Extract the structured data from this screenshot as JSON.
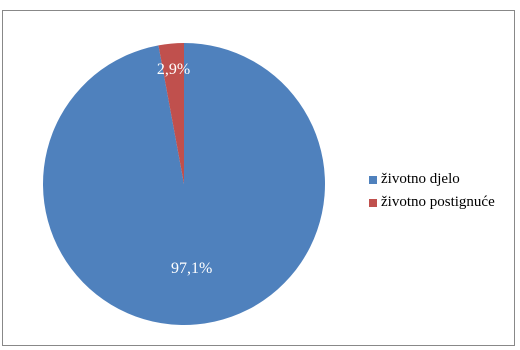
{
  "chart_data": {
    "type": "pie",
    "title": "",
    "categories": [
      "životno djelo",
      "životno postignuće"
    ],
    "values": [
      97.1,
      2.9
    ],
    "labels": [
      "97,1%",
      "2,9%"
    ],
    "colors": [
      "#4f81bd",
      "#c0504d"
    ],
    "start_angle_deg": 0,
    "direction": "clockwise",
    "legend_position": "right"
  }
}
